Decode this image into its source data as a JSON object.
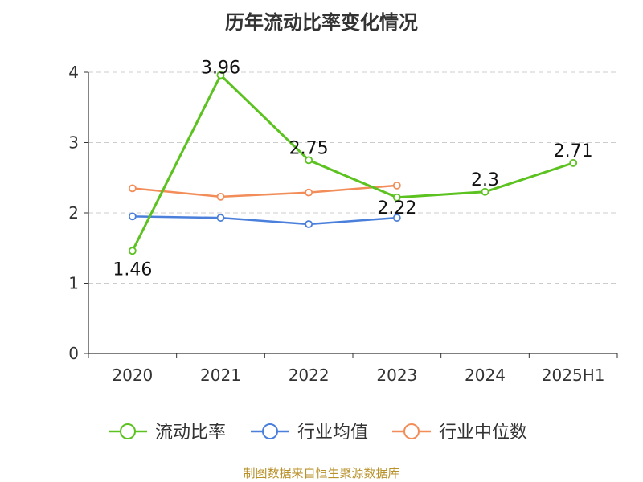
{
  "chart_data": {
    "type": "line",
    "title": "历年流动比率变化情况",
    "categories": [
      "2020",
      "2021",
      "2022",
      "2023",
      "2024",
      "2025H1"
    ],
    "ylim": [
      0,
      4
    ],
    "yticks": [
      "0",
      "1",
      "2",
      "3",
      "4"
    ],
    "grid": true,
    "legend_position": "bottom",
    "series": [
      {
        "name": "流动比率",
        "color": "#5bc220",
        "values": [
          1.46,
          3.96,
          2.75,
          2.22,
          2.3,
          2.71
        ],
        "labels": [
          "1.46",
          "3.96",
          "2.75",
          "2.22",
          "2.3",
          "2.71"
        ]
      },
      {
        "name": "行业均值",
        "color": "#4a7fdb",
        "values": [
          1.95,
          1.93,
          1.84,
          1.93,
          null,
          null
        ]
      },
      {
        "name": "行业中位数",
        "color": "#f28c58",
        "values": [
          2.35,
          2.23,
          2.29,
          2.39,
          null,
          null
        ]
      }
    ]
  },
  "source": "制图数据来自恒生聚源数据库"
}
